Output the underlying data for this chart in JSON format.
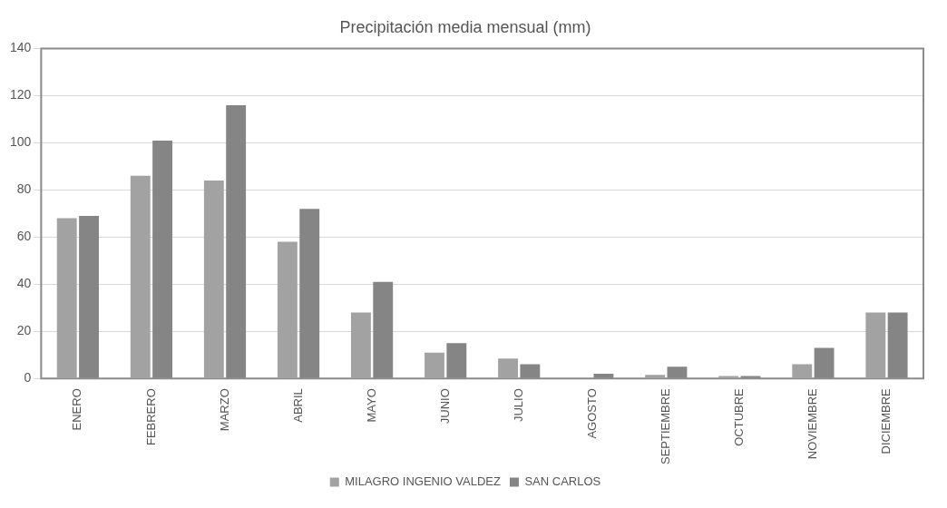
{
  "chart_data": {
    "type": "bar",
    "title": "Precipitación media mensual (mm)",
    "categories": [
      "ENERO",
      "FEBRERO",
      "MARZO",
      "ABRIL",
      "MAYO",
      "JUNIO",
      "JULIO",
      "AGOSTO",
      "SEPTIEMBRE",
      "OCTUBRE",
      "NOVIEMBRE",
      "DICIEMBRE"
    ],
    "series": [
      {
        "name": "MILAGRO INGENIO VALDEZ",
        "color": "#a2a2a2",
        "values": [
          68,
          86,
          84,
          58,
          28,
          11,
          8.5,
          0,
          1.5,
          1,
          6,
          28
        ]
      },
      {
        "name": "SAN CARLOS",
        "color": "#858585",
        "values": [
          69,
          101,
          116,
          72,
          41,
          15,
          6,
          2,
          5,
          1,
          13,
          28
        ]
      }
    ],
    "ylim": [
      0,
      140
    ],
    "yticks": [
      0,
      20,
      40,
      60,
      80,
      100,
      120,
      140
    ],
    "grid": "y",
    "legend": "bottom"
  }
}
